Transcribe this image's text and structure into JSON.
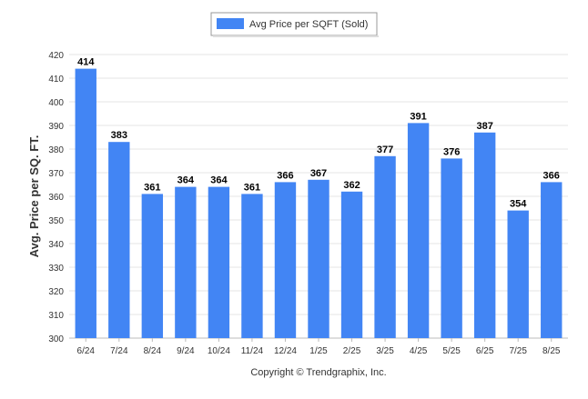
{
  "chart_data": {
    "type": "bar",
    "categories": [
      "6/24",
      "7/24",
      "8/24",
      "9/24",
      "10/24",
      "11/24",
      "12/24",
      "1/25",
      "2/25",
      "3/25",
      "4/25",
      "5/25",
      "6/25",
      "7/25",
      "8/25"
    ],
    "series": [
      {
        "name": "Avg Price per SQFT (Sold)",
        "values": [
          414,
          383,
          361,
          364,
          364,
          361,
          366,
          367,
          362,
          377,
          391,
          376,
          387,
          354,
          366
        ],
        "color": "#4285f4"
      }
    ],
    "xlabel": "",
    "ylabel": "Avg. Price per SQ. FT.",
    "ylim": [
      300,
      420
    ],
    "yticks": [
      300,
      310,
      320,
      330,
      340,
      350,
      360,
      370,
      380,
      390,
      400,
      410,
      420
    ],
    "grid": true,
    "legend_position": "top-center",
    "data_labels": true
  },
  "footer": {
    "copyright": "Copyright © Trendgraphix, Inc."
  }
}
